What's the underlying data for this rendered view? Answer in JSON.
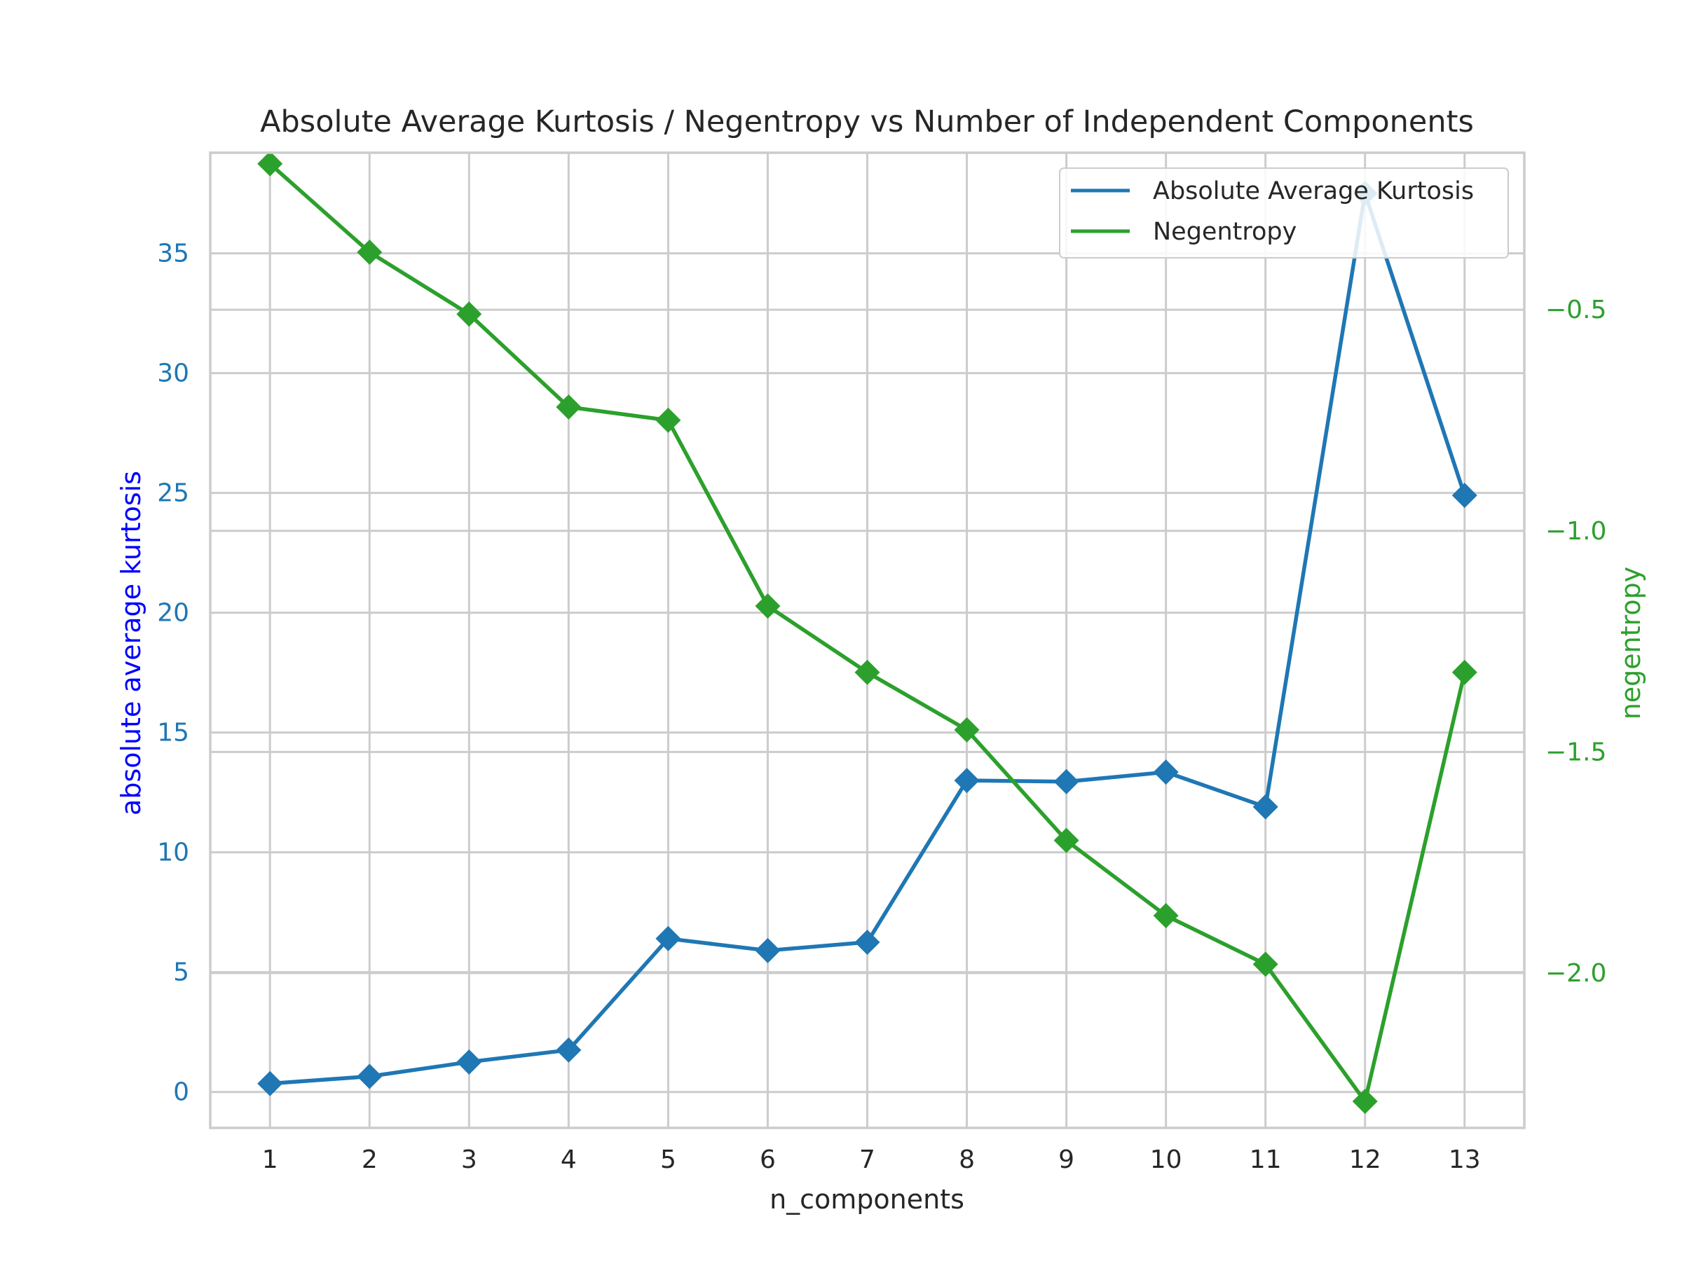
{
  "chart_data": {
    "type": "line",
    "title": "Absolute Average Kurtosis / Negentropy vs Number of Independent Components",
    "xlabel": "n_components",
    "ylabel_left": "absolute average kurtosis",
    "ylabel_right": "negentropy",
    "x": [
      1,
      2,
      3,
      4,
      5,
      6,
      7,
      8,
      9,
      10,
      11,
      12,
      13
    ],
    "xlim": [
      0.4,
      13.6
    ],
    "ylim_left": [
      -1.5,
      39.2
    ],
    "ylim_right": [
      -2.35,
      -0.145
    ],
    "yticks_left": [
      0,
      5,
      10,
      15,
      20,
      25,
      30,
      35
    ],
    "yticks_right": [
      -2.0,
      -1.5,
      -1.0,
      -0.5
    ],
    "ytick_labels_right": [
      "−2.0",
      "−1.5",
      "−1.0",
      "−0.5"
    ],
    "grid": true,
    "legend_position": "top-right",
    "series": [
      {
        "name": "Absolute Average Kurtosis",
        "axis": "left",
        "color": "#1f77b4",
        "marker": "diamond",
        "values": [
          0.35,
          0.65,
          1.25,
          1.75,
          6.4,
          5.9,
          6.25,
          13.0,
          12.95,
          13.35,
          11.9,
          37.5,
          24.9
        ]
      },
      {
        "name": "Negentropy",
        "axis": "right",
        "color": "#2ca02c",
        "marker": "diamond",
        "values": [
          -0.17,
          -0.37,
          -0.51,
          -0.72,
          -0.75,
          -1.17,
          -1.32,
          -1.45,
          -1.7,
          -1.87,
          -1.98,
          -2.29,
          -1.32
        ]
      }
    ],
    "left_axis_color": "#1f77b4",
    "left_label_color": "#0000ff",
    "right_axis_color": "#2ca02c",
    "right_label_color": "#2ca02c"
  }
}
